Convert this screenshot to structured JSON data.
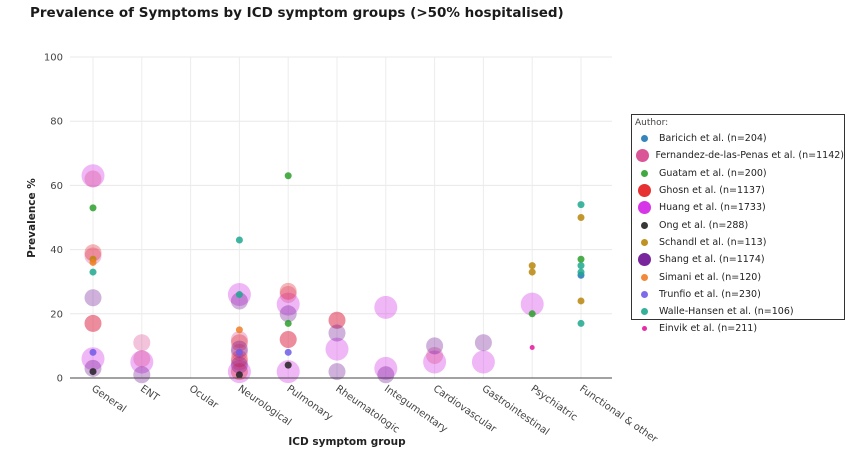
{
  "chart_data": {
    "type": "scatter",
    "title": "Prevalence of Symptoms by ICD symptom groups (>50% hospitalised)",
    "xlabel": "ICD symptom group",
    "ylabel": "Prevalence %",
    "ylim": [
      0,
      100
    ],
    "yticks": [
      0,
      20,
      40,
      60,
      80,
      100
    ],
    "categories": [
      "General",
      "ENT",
      "Ocular",
      "Neurological",
      "Pulmonary",
      "Rheumatologic",
      "Integumentary",
      "Cardiovascular",
      "Gastrointestinal",
      "Psychiatric",
      "Functional & other"
    ],
    "legend_title": "Author:",
    "legend_position": "right",
    "series": [
      {
        "name": "Baricich et al. (n=204)",
        "color": "#1f77b4",
        "size": 7,
        "points": [
          [
            "Functional & other",
            32
          ]
        ]
      },
      {
        "name": "Fernandez-de-las-Penas et al. (n=1142)",
        "color": "#d6448b",
        "size": 14,
        "points": [
          [
            "General",
            62
          ],
          [
            "General",
            38
          ],
          [
            "General",
            17
          ],
          [
            "ENT",
            11
          ],
          [
            "ENT",
            6
          ],
          [
            "Neurological",
            12
          ],
          [
            "Neurological",
            8
          ],
          [
            "Neurological",
            5
          ],
          [
            "Pulmonary",
            26
          ],
          [
            "Pulmonary",
            12
          ],
          [
            "Rheumatologic",
            18
          ],
          [
            "Cardiovascular",
            7
          ]
        ]
      },
      {
        "name": "Guatam et al. (n=200)",
        "color": "#2ca02c",
        "size": 7,
        "points": [
          [
            "General",
            53
          ],
          [
            "Pulmonary",
            63
          ],
          [
            "Pulmonary",
            17
          ],
          [
            "Psychiatric",
            20
          ],
          [
            "Functional & other",
            37
          ]
        ]
      },
      {
        "name": "Ghosn et al. (n=1137)",
        "color": "#e31a1c",
        "size": 14,
        "points": [
          [
            "General",
            39
          ],
          [
            "General",
            17
          ],
          [
            "Neurological",
            11
          ],
          [
            "Neurological",
            6
          ],
          [
            "Pulmonary",
            27
          ],
          [
            "Pulmonary",
            12
          ],
          [
            "Rheumatologic",
            18
          ],
          [
            "Neurological",
            2
          ]
        ]
      },
      {
        "name": "Huang et al. (n=1733)",
        "color": "#d11fe6",
        "size": 20,
        "points": [
          [
            "General",
            63
          ],
          [
            "General",
            6
          ],
          [
            "ENT",
            5
          ],
          [
            "Neurological",
            26
          ],
          [
            "Neurological",
            2
          ],
          [
            "Pulmonary",
            23
          ],
          [
            "Pulmonary",
            2
          ],
          [
            "Rheumatologic",
            9
          ],
          [
            "Integumentary",
            22
          ],
          [
            "Integumentary",
            3
          ],
          [
            "Cardiovascular",
            5
          ],
          [
            "Gastrointestinal",
            5
          ],
          [
            "Psychiatric",
            23
          ]
        ]
      },
      {
        "name": "Ong et al. (n=288)",
        "color": "#222222",
        "size": 7,
        "points": [
          [
            "Neurological",
            1
          ],
          [
            "General",
            2
          ],
          [
            "Pulmonary",
            4
          ]
        ]
      },
      {
        "name": "Schandl et al. (n=113)",
        "color": "#b8860b",
        "size": 7,
        "points": [
          [
            "Functional & other",
            50
          ],
          [
            "Functional & other",
            24
          ],
          [
            "Psychiatric",
            35
          ],
          [
            "Psychiatric",
            33
          ],
          [
            "General",
            37
          ]
        ]
      },
      {
        "name": "Shang et al. (n=1174)",
        "color": "#6a0d91",
        "size": 14,
        "points": [
          [
            "General",
            25
          ],
          [
            "General",
            3
          ],
          [
            "ENT",
            1
          ],
          [
            "Neurological",
            24
          ],
          [
            "Neurological",
            9
          ],
          [
            "Neurological",
            4
          ],
          [
            "Pulmonary",
            20
          ],
          [
            "Rheumatologic",
            14
          ],
          [
            "Rheumatologic",
            2
          ],
          [
            "Integumentary",
            1
          ],
          [
            "Cardiovascular",
            10
          ],
          [
            "Gastrointestinal",
            11
          ]
        ]
      },
      {
        "name": "Simani et al. (n=120)",
        "color": "#f07e26",
        "size": 7,
        "points": [
          [
            "General",
            36
          ],
          [
            "Neurological",
            15
          ]
        ]
      },
      {
        "name": "Trunfio et al. (n=230)",
        "color": "#6f5ce8",
        "size": 7,
        "points": [
          [
            "Neurological",
            8
          ],
          [
            "Pulmonary",
            8
          ],
          [
            "General",
            8
          ]
        ]
      },
      {
        "name": "Walle-Hansen et al. (n=106)",
        "color": "#1fa88f",
        "size": 7,
        "points": [
          [
            "General",
            33
          ],
          [
            "Neurological",
            43
          ],
          [
            "Neurological",
            26
          ],
          [
            "Functional & other",
            54
          ],
          [
            "Functional & other",
            35
          ],
          [
            "Functional & other",
            33
          ],
          [
            "Functional & other",
            17
          ]
        ]
      },
      {
        "name": "Einvik et al. (n=211)",
        "color": "#e6149c",
        "size": 5,
        "points": [
          [
            "Psychiatric",
            9.5
          ]
        ]
      }
    ]
  }
}
